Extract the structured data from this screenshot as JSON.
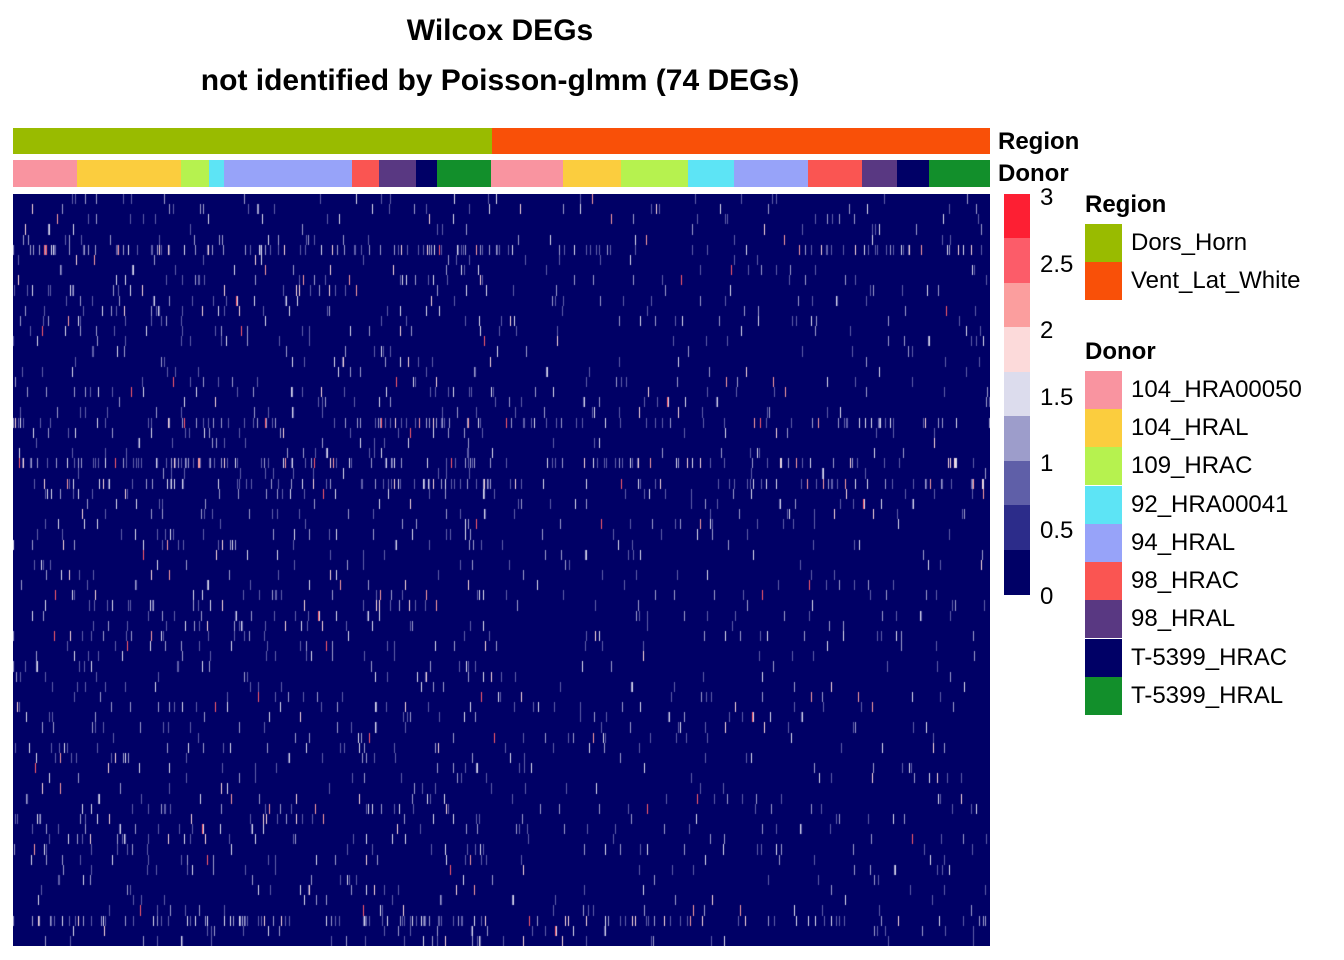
{
  "chart_data": {
    "type": "heatmap",
    "title": "Wilcox DEGs",
    "subtitle": "not identified by Poisson-glmm (74 DEGs)",
    "n_rows": 74,
    "annotations": {
      "region": {
        "label": "Region",
        "segments": [
          {
            "name": "Dors_Horn",
            "fraction": 0.49
          },
          {
            "name": "Vent_Lat_White",
            "fraction": 0.51
          }
        ]
      },
      "donor": {
        "label": "Donor",
        "segments": [
          {
            "name": "104_HRA00050",
            "fraction": 0.066
          },
          {
            "name": "104_HRAL",
            "fraction": 0.106
          },
          {
            "name": "109_HRAC",
            "fraction": 0.029
          },
          {
            "name": "92_HRA00041",
            "fraction": 0.015
          },
          {
            "name": "94_HRAL",
            "fraction": 0.131
          },
          {
            "name": "98_HRAC",
            "fraction": 0.028
          },
          {
            "name": "98_HRAL",
            "fraction": 0.038
          },
          {
            "name": "T-5399_HRAC",
            "fraction": 0.022
          },
          {
            "name": "T-5399_HRAL",
            "fraction": 0.055
          },
          {
            "name": "104_HRA00050",
            "fraction": 0.074
          },
          {
            "name": "104_HRAL",
            "fraction": 0.059
          },
          {
            "name": "109_HRAC",
            "fraction": 0.069
          },
          {
            "name": "92_HRA00041",
            "fraction": 0.047
          },
          {
            "name": "94_HRAL",
            "fraction": 0.076
          },
          {
            "name": "98_HRAC",
            "fraction": 0.055
          },
          {
            "name": "98_HRAL",
            "fraction": 0.036
          },
          {
            "name": "T-5399_HRAC",
            "fraction": 0.033
          },
          {
            "name": "T-5399_HRAL",
            "fraction": 0.061
          }
        ]
      }
    },
    "color_scale": {
      "min": 0,
      "max": 3,
      "ticks": [
        "3",
        "2.5",
        "2",
        "1.5",
        "1",
        "0.5",
        "0"
      ],
      "bins": [
        "#000066",
        "#2c2c8a",
        "#5f5fa8",
        "#9d9dcb",
        "#dcdced",
        "#fcdada",
        "#fb9e9e",
        "#fc5c69",
        "#fd1f33"
      ],
      "background_value": 0,
      "sparse_rows_with_dense_signal": [
        5,
        22,
        26,
        28,
        71
      ]
    },
    "legends": [
      {
        "title": "Region",
        "items": [
          {
            "label": "Dors_Horn",
            "color": "#99bb00"
          },
          {
            "label": "Vent_Lat_White",
            "color": "#f95008"
          }
        ]
      },
      {
        "title": "Donor",
        "items": [
          {
            "label": "104_HRA00050",
            "color": "#f994a0"
          },
          {
            "label": "104_HRAL",
            "color": "#fbcd3e"
          },
          {
            "label": "109_HRAC",
            "color": "#b6f24f"
          },
          {
            "label": "92_HRA00041",
            "color": "#5de4f5"
          },
          {
            "label": "94_HRAL",
            "color": "#97a3f9"
          },
          {
            "label": "98_HRAC",
            "color": "#fa5552"
          },
          {
            "label": "98_HRAL",
            "color": "#593882"
          },
          {
            "label": "T-5399_HRAC",
            "color": "#000066"
          },
          {
            "label": "T-5399_HRAL",
            "color": "#128f2b"
          }
        ]
      }
    ]
  }
}
